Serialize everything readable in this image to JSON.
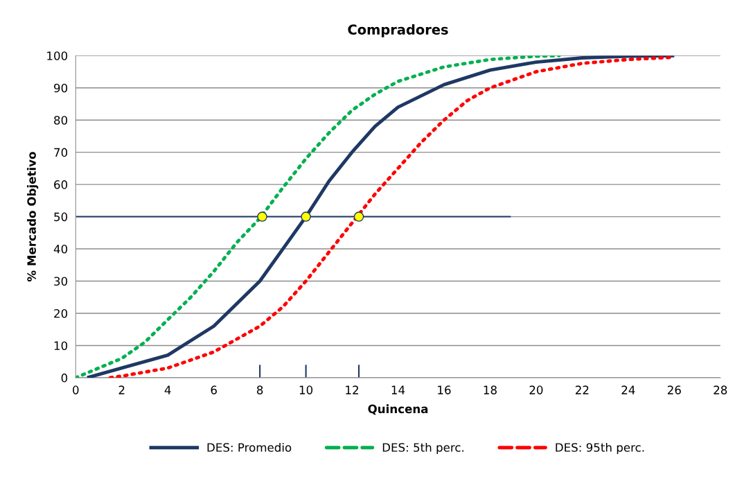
{
  "chart_data": {
    "type": "line",
    "title": "Compradores",
    "xlabel": "Quincena",
    "ylabel": "% Mercado Objetivo",
    "xlim": [
      0,
      28
    ],
    "xticks": [
      0,
      2,
      4,
      6,
      8,
      10,
      12,
      14,
      16,
      18,
      20,
      22,
      24,
      26,
      28
    ],
    "ylim": [
      0,
      100
    ],
    "yticks": [
      0,
      10,
      20,
      30,
      40,
      50,
      60,
      70,
      80,
      90,
      100
    ],
    "grid": "y",
    "legend": "bottom",
    "series": [
      {
        "name": "DES: Promedio",
        "color": "#1f3864",
        "line_style": "solid",
        "marker": "none",
        "x": [
          0.5,
          2,
          4,
          6,
          8,
          9,
          10,
          11,
          12,
          13,
          14,
          16,
          18,
          20,
          22,
          24,
          26
        ],
        "values": [
          0,
          3,
          7,
          16,
          30,
          40,
          50,
          61,
          70,
          78,
          84,
          91,
          95.5,
          98,
          99.3,
          99.8,
          100
        ]
      },
      {
        "name": "DES: 5th perc.",
        "color": "#00b050",
        "line_style": "dotted",
        "marker": "none",
        "x": [
          0,
          1,
          2,
          3,
          4,
          5,
          6,
          7,
          8,
          9,
          10,
          11,
          12,
          13,
          14,
          16,
          18,
          20,
          21
        ],
        "values": [
          0,
          3,
          6,
          11,
          18,
          25,
          33,
          42,
          49.5,
          59,
          68,
          76,
          83,
          88,
          92,
          96.5,
          98.8,
          99.8,
          100
        ]
      },
      {
        "name": "DES: 95th perc.",
        "color": "#ff0000",
        "line_style": "dotted",
        "marker": "none",
        "x": [
          1.5,
          2,
          4,
          6,
          8,
          9,
          10,
          11,
          12,
          13,
          14,
          15,
          16,
          17,
          18,
          20,
          22,
          24,
          26
        ],
        "values": [
          0,
          0.5,
          3,
          8,
          16,
          22,
          30,
          39,
          48,
          57,
          65,
          73,
          80,
          86,
          90,
          95,
          97.6,
          98.8,
          99.5
        ]
      },
      {
        "type": "line",
        "color": "#1f3864",
        "line_style": "solid",
        "marker": "none",
        "x": [
          0,
          18.9
        ],
        "values": [
          50,
          50
        ]
      },
      {
        "type": "line",
        "color": "#1f3864",
        "line_style": "solid",
        "marker": "none",
        "x": [
          8,
          8
        ],
        "values": [
          0,
          4
        ]
      },
      {
        "type": "line",
        "color": "#1f3864",
        "line_style": "solid",
        "marker": "none",
        "x": [
          10,
          10
        ],
        "values": [
          0,
          4
        ]
      },
      {
        "type": "line",
        "color": "#1f3864",
        "line_style": "solid",
        "marker": "none",
        "x": [
          12.3,
          12.3
        ],
        "values": [
          0,
          4
        ]
      },
      {
        "type": "scatter",
        "color": "#ffff00",
        "marker": "circle",
        "x": [
          8.1,
          10,
          12.3
        ],
        "values": [
          50,
          50,
          50
        ]
      }
    ]
  }
}
